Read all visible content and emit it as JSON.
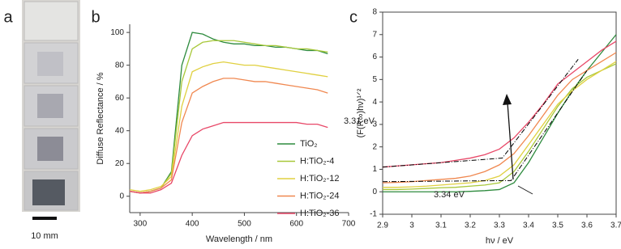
{
  "panel_a": {
    "label": "a",
    "scale_bar": "10 mm"
  },
  "chart_data": [
    {
      "type": "line",
      "panel_label": "b",
      "x_label": "Wavelength / nm",
      "y_label": "Diffuse Reflectance / %",
      "x": [
        280,
        300,
        320,
        340,
        360,
        380,
        400,
        420,
        440,
        460,
        480,
        500,
        520,
        540,
        560,
        580,
        600,
        620,
        640,
        660
      ],
      "xlim": [
        280,
        700
      ],
      "xticks": [
        300,
        400,
        500,
        600,
        700
      ],
      "ylim": [
        -10,
        105
      ],
      "yticks": [
        0,
        20,
        40,
        60,
        80,
        100
      ],
      "frame": false,
      "legend": "lower right",
      "series": [
        {
          "name": "TiO₂",
          "color": "#2e8b3e",
          "values": [
            3,
            2,
            3,
            5,
            15,
            80,
            100,
            99,
            96,
            94,
            93,
            93,
            92,
            92,
            91,
            91,
            90,
            89,
            89,
            87
          ]
        },
        {
          "name": "H:TiO₂-4",
          "color": "#a8c83a",
          "values": [
            3,
            2,
            3,
            5,
            14,
            70,
            90,
            94,
            95,
            95,
            95,
            94,
            93,
            92,
            92,
            91,
            90,
            90,
            89,
            88
          ]
        },
        {
          "name": "H:TiO₂-12",
          "color": "#e0d040",
          "values": [
            4,
            3,
            4,
            6,
            12,
            55,
            76,
            79,
            81,
            82,
            81,
            80,
            80,
            79,
            78,
            77,
            76,
            75,
            74,
            73
          ]
        },
        {
          "name": "H:TiO₂-24",
          "color": "#f08850",
          "values": [
            3,
            2,
            3,
            5,
            10,
            45,
            63,
            67,
            70,
            72,
            72,
            71,
            70,
            70,
            69,
            68,
            67,
            66,
            65,
            63
          ]
        },
        {
          "name": "H:TiO₂-36",
          "color": "#e84868",
          "values": [
            3,
            2,
            2,
            4,
            8,
            25,
            37,
            41,
            43,
            45,
            45,
            45,
            45,
            45,
            45,
            45,
            45,
            44,
            44,
            42
          ]
        }
      ]
    },
    {
      "type": "line",
      "panel_label": "c",
      "x_label": "hν / eV",
      "y_label": "(F(R∞)hν)¹ᐟ²",
      "x": [
        2.9,
        2.95,
        3.0,
        3.05,
        3.1,
        3.15,
        3.2,
        3.25,
        3.3,
        3.35,
        3.4,
        3.45,
        3.5,
        3.55,
        3.6,
        3.65,
        3.7
      ],
      "xlim": [
        2.9,
        3.7
      ],
      "xticks": [
        2.9,
        3,
        3.1,
        3.2,
        3.3,
        3.4,
        3.5,
        3.6,
        3.7
      ],
      "ylim": [
        -1,
        8
      ],
      "yticks": [
        -1,
        0,
        1,
        2,
        3,
        4,
        5,
        6,
        7,
        8
      ],
      "frame": true,
      "annotations": [
        "3.31 eV",
        "3.34 eV"
      ],
      "series": [
        {
          "color": "#2e8b3e",
          "values": [
            0,
            0,
            0,
            0,
            0,
            0,
            0.02,
            0.05,
            0.1,
            0.4,
            1.3,
            2.4,
            3.5,
            4.5,
            5.4,
            6.2,
            7.0
          ]
        },
        {
          "color": "#a8c83a",
          "values": [
            0.1,
            0.1,
            0.12,
            0.15,
            0.18,
            0.2,
            0.25,
            0.3,
            0.4,
            0.9,
            1.8,
            2.8,
            3.8,
            4.6,
            5.1,
            5.4,
            5.7
          ]
        },
        {
          "color": "#e0d040",
          "values": [
            0.2,
            0.2,
            0.22,
            0.25,
            0.3,
            0.35,
            0.4,
            0.5,
            0.7,
            1.2,
            2.1,
            3.0,
            3.9,
            4.5,
            5.0,
            5.4,
            5.8
          ]
        },
        {
          "color": "#f08850",
          "values": [
            0.4,
            0.42,
            0.45,
            0.5,
            0.55,
            0.6,
            0.7,
            0.9,
            1.2,
            1.7,
            2.5,
            3.4,
            4.3,
            5.0,
            5.4,
            5.8,
            6.2
          ]
        },
        {
          "color": "#e84868",
          "values": [
            1.1,
            1.15,
            1.2,
            1.25,
            1.3,
            1.4,
            1.5,
            1.65,
            1.9,
            2.4,
            3.1,
            3.9,
            4.8,
            5.3,
            5.8,
            6.3,
            6.7
          ]
        },
        {
          "color": "#000000",
          "dash": "6 2 1 2",
          "x": [
            2.9,
            3.31,
            3.57
          ],
          "values": [
            1.1,
            1.5,
            5.9
          ]
        },
        {
          "color": "#000000",
          "dash": "6 2 1 2",
          "x": [
            2.9,
            3.34,
            3.6
          ],
          "values": [
            0.45,
            0.5,
            5.4
          ]
        }
      ]
    }
  ]
}
